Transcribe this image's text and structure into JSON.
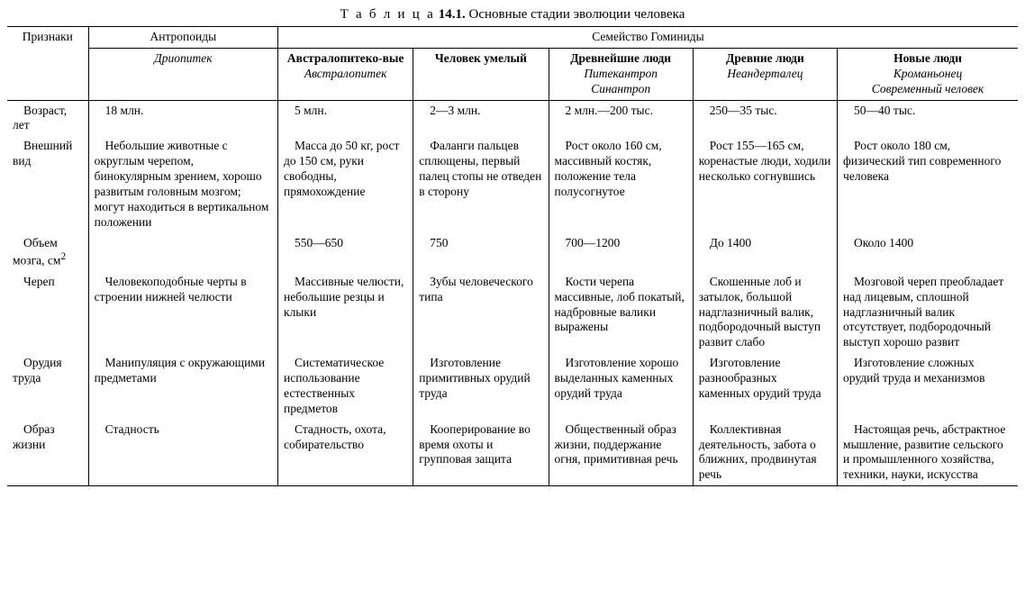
{
  "title_prefix": "Т а б л и ц а",
  "title_number": " 14.1. ",
  "title_rest": "Основные стадии эволюции человека",
  "header": {
    "traits": "Признаки",
    "anthropoids": "Антропоиды",
    "hominidae": "Семейство Гоминиды",
    "dryopithecus": "Дриопитек",
    "australo_group": "Австралопитеко-вые",
    "australo_sub": "Австралопитек",
    "homo_habilis": "Человек умелый",
    "ancient_people": "Древнейшие люди",
    "ancient_people_sub1": "Питекантроп",
    "ancient_people_sub2": "Синантроп",
    "old_people": "Древние люди",
    "old_people_sub": "Неандерталец",
    "new_people": "Новые люди",
    "new_people_sub1": "Кроманьонец",
    "new_people_sub2": "Современный человек"
  },
  "rows": {
    "age": {
      "label": "Возраст, лет",
      "c1": "18 млн.",
      "c2": "5 млн.",
      "c3": "2—3 млн.",
      "c4": "2 млн.—200 тыс.",
      "c5": "250—35 тыс.",
      "c6": "50—40 тыс."
    },
    "appearance": {
      "label": "Внешний вид",
      "c1": "Небольшие животные с округлым черепом, бинокулярным зрением, хорошо развитым головным мозгом; могут находиться в вертикальном положении",
      "c2": "Масса до 50 кг, рост до 150 см, руки свободны, прямохождение",
      "c3": "Фаланги пальцев сплющены, первый палец стопы не отведен в сторону",
      "c4": "Рост около 160 см, массивный костяк, положение тела полусогнутое",
      "c5": "Рост 155—165 см, коренастые люди, ходили несколько согнувшись",
      "c6": "Рост около 180 см, физический тип современного человека"
    },
    "brain": {
      "label_html": "Объем мозга, см",
      "c1": "",
      "c2": "550—650",
      "c3": "750",
      "c4": "700—1200",
      "c5": "До 1400",
      "c6": "Около 1400"
    },
    "skull": {
      "label": "Череп",
      "c1": "Человекоподобные черты в строении нижней челюсти",
      "c2": "Массивные челюсти, небольшие резцы и клыки",
      "c3": "Зубы человеческого типа",
      "c4": "Кости черепа массивные, лоб покатый, надбровные валики выражены",
      "c5": "Скошенные лоб и затылок, большой надглазничный валик, подбородочный выступ развит слабо",
      "c6": "Мозговой череп преобладает над лицевым, сплошной надглазничный валик отсутствует, подбородочный выступ хорошо развит"
    },
    "tools": {
      "label": "Орудия труда",
      "c1": "Манипуляция с окружающими предметами",
      "c2": "Систематическое использование естественных предметов",
      "c3": "Изготовление примитивных орудий труда",
      "c4": "Изготовление хорошо выделанных каменных орудий труда",
      "c5": "Изготовление разнообразных каменных орудий труда",
      "c6": "Изготовление сложных орудий труда и механизмов"
    },
    "lifestyle": {
      "label": "Образ жизни",
      "c1": "Стадность",
      "c2": "Стадность, охота, собирательство",
      "c3": "Кооперирование во время охоты и групповая защита",
      "c4": "Общественный образ жизни, поддержание огня, примитивная речь",
      "c5": "Коллективная деятельность, забота о ближних, продвинутая речь",
      "c6": "Настоящая речь, абстрактное мышление, развитие сельского и промышленного хозяйства, техники, науки, искусства"
    }
  }
}
